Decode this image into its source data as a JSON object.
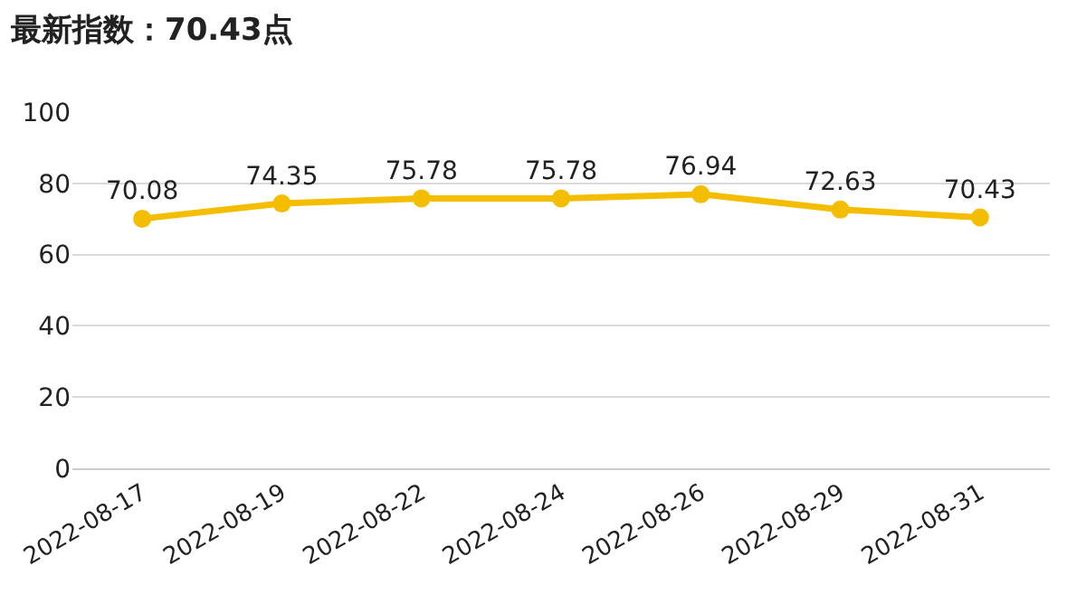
{
  "chart_data": {
    "type": "line",
    "title": "最新指数：70.43点",
    "categories": [
      "2022-08-17",
      "2022-08-19",
      "2022-08-22",
      "2022-08-24",
      "2022-08-26",
      "2022-08-29",
      "2022-08-31"
    ],
    "series": [
      {
        "color": "#f5bd00",
        "values": [
          70.08,
          74.35,
          75.78,
          75.78,
          76.94,
          72.63,
          70.43
        ]
      }
    ],
    "ylim": [
      0,
      100
    ],
    "yticks": [
      0,
      20,
      40,
      60,
      80,
      100
    ],
    "grid": "y",
    "marker": "circle",
    "line_style": "solid",
    "data_labels": true
  }
}
